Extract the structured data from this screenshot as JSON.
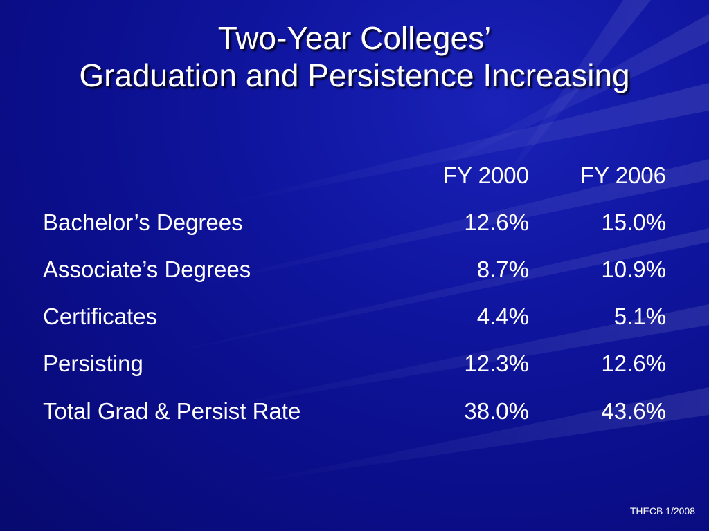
{
  "slide": {
    "title_line1": "Two-Year Colleges’",
    "title_line2": "Graduation and Persistence Increasing",
    "columns": [
      "FY 2000",
      "FY 2006"
    ],
    "rows": [
      {
        "label": "Bachelor’s Degrees",
        "fy2000": "12.6%",
        "fy2006": "15.0%"
      },
      {
        "label": "Associate’s Degrees",
        "fy2000": "8.7%",
        "fy2006": "10.9%"
      },
      {
        "label": "Certificates",
        "fy2000": "4.4%",
        "fy2006": "5.1%"
      },
      {
        "label": "Persisting",
        "fy2000": "12.3%",
        "fy2006": "12.6%"
      },
      {
        "label": "Total Grad & Persist Rate",
        "fy2000": "38.0%",
        "fy2006": "43.6%"
      }
    ],
    "footer": "THECB 1/2008"
  },
  "theme": {
    "background": "#0b0f8c",
    "text": "#ffffff"
  }
}
